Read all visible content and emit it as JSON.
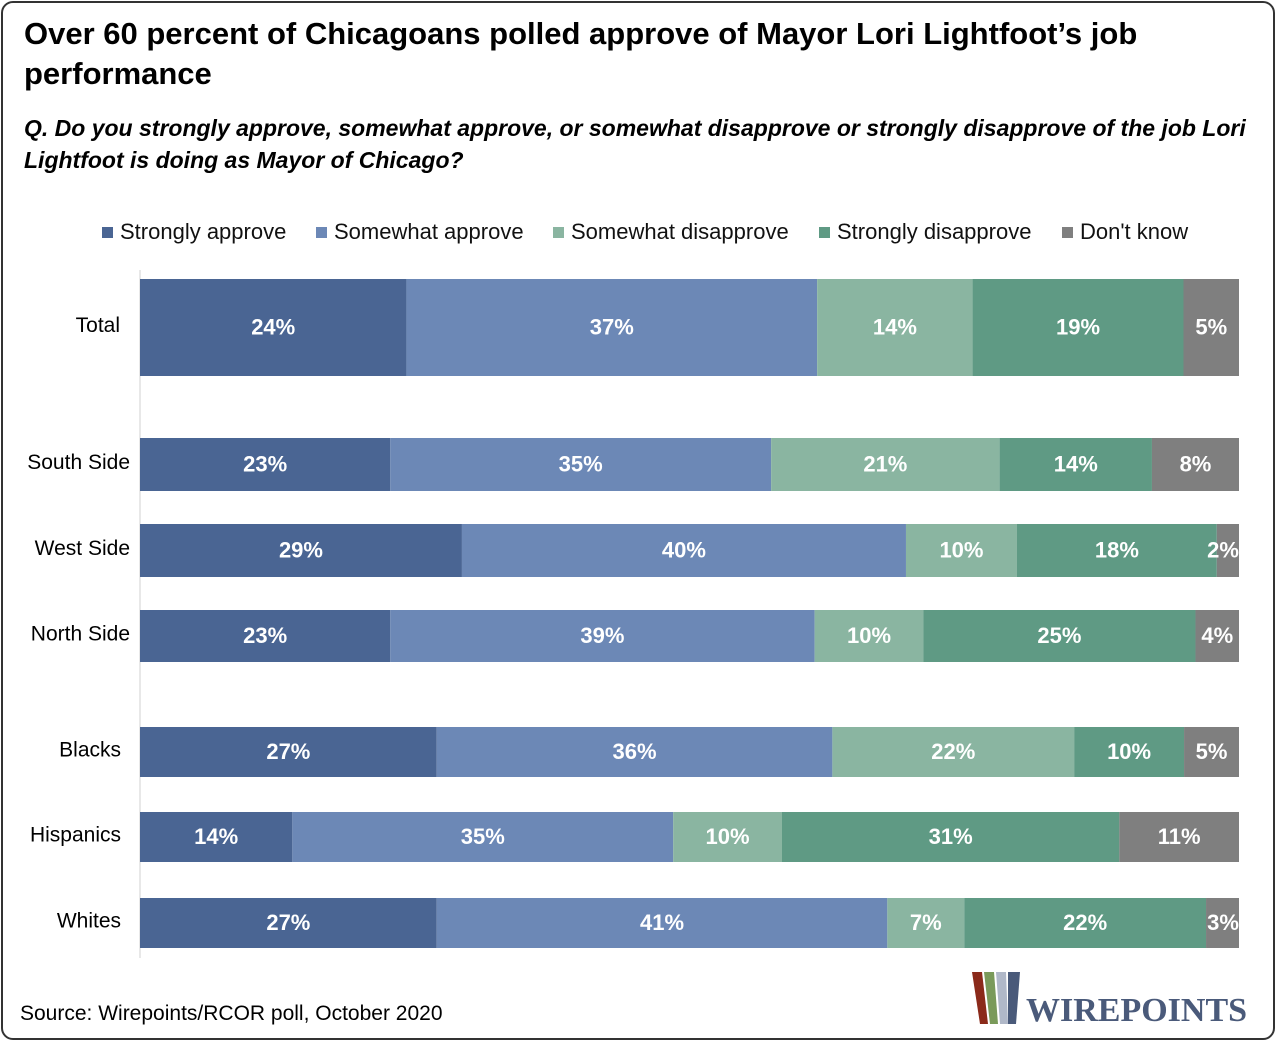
{
  "title": "Over 60 percent of Chicagoans polled approve of Mayor Lori Lightfoot’s job performance",
  "subtitle": "Q. Do you strongly approve, somewhat approve, or somewhat disapprove or strongly disapprove of the job Lori Lightfoot is doing as Mayor of Chicago?",
  "source": "Source: Wirepoints/RCOR poll, October 2020",
  "logo": {
    "text": "WIREPOINTS",
    "colors": [
      "#8b2a1a",
      "#7a9a5a",
      "#b0b8c8",
      "#4a5a7a"
    ]
  },
  "chart_data": {
    "type": "bar",
    "orientation": "horizontal",
    "stacked": true,
    "categories": [
      "Total",
      "South Side",
      "West Side",
      "North Side",
      "Blacks",
      "Hispanics",
      "Whites"
    ],
    "series": [
      {
        "name": "Strongly approve",
        "color": "#4a6593",
        "values": [
          24,
          23,
          29,
          23,
          27,
          14,
          27
        ],
        "labels": [
          "24%",
          "23%",
          "29%",
          "23%",
          "27%",
          "14%",
          "27%"
        ]
      },
      {
        "name": "Somewhat approve",
        "color": "#6c88b6",
        "values": [
          37,
          35,
          40,
          39,
          36,
          35,
          41
        ],
        "labels": [
          "37%",
          "35%",
          "40%",
          "39%",
          "36%",
          "35%",
          "41%"
        ]
      },
      {
        "name": "Somewhat disapprove",
        "color": "#8ab5a1",
        "values": [
          14,
          21,
          10,
          10,
          22,
          10,
          7
        ],
        "labels": [
          "14%",
          "21%",
          "10%",
          "10%",
          "22%",
          "10%",
          "7%"
        ]
      },
      {
        "name": "Strongly disapprove",
        "color": "#5f9a84",
        "values": [
          19,
          14,
          18,
          25,
          10,
          31,
          22
        ],
        "labels": [
          "19%",
          "14%",
          "18%",
          "25%",
          "10%",
          "31%",
          "22%"
        ]
      },
      {
        "name": "Don't know",
        "color": "#7f7f7f",
        "values": [
          5,
          8,
          2,
          4,
          5,
          11,
          3
        ],
        "labels": [
          "5%",
          "8%",
          "2%",
          "4%",
          "5%",
          "11%",
          "3%"
        ]
      }
    ],
    "legend_position": "top",
    "grid": false
  }
}
